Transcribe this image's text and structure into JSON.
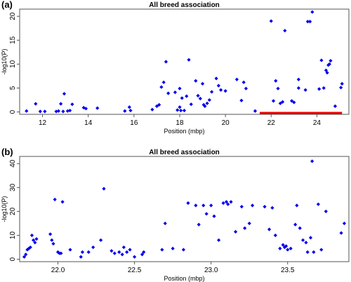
{
  "colors": {
    "points": "#0000ee",
    "highlight": "#ee0000",
    "axis": "#555555"
  },
  "chart_data": [
    {
      "panel_label": "(a)",
      "type": "scatter",
      "title": "All breed association",
      "xlabel": "Position (mbp)",
      "ylabel": "-log10(P)",
      "xlim": [
        11,
        25.4
      ],
      "ylim": [
        -0.5,
        21.5
      ],
      "xticks": [
        12,
        14,
        16,
        18,
        20,
        22,
        24
      ],
      "yticks": [
        0,
        5,
        10,
        15,
        20
      ],
      "highlight_segment": {
        "x": [
          21.5,
          25.1
        ],
        "y": -0.2
      },
      "points": [
        [
          11.3,
          0.2
        ],
        [
          11.7,
          1.7
        ],
        [
          11.9,
          0.1
        ],
        [
          12.1,
          0.1
        ],
        [
          12.6,
          0.1
        ],
        [
          12.7,
          0.2
        ],
        [
          12.9,
          0.1
        ],
        [
          12.8,
          1.7
        ],
        [
          12.95,
          3.8
        ],
        [
          13.1,
          0.2
        ],
        [
          13.2,
          0.3
        ],
        [
          13.3,
          1.6
        ],
        [
          13.8,
          0.9
        ],
        [
          13.9,
          0.7
        ],
        [
          14.4,
          0.8
        ],
        [
          15.6,
          0.2
        ],
        [
          15.8,
          1.0
        ],
        [
          15.85,
          0.3
        ],
        [
          16.8,
          0.5
        ],
        [
          17.0,
          1.2
        ],
        [
          17.1,
          1.5
        ],
        [
          17.2,
          5.2
        ],
        [
          17.3,
          6.2
        ],
        [
          17.4,
          10.5
        ],
        [
          17.5,
          3.9
        ],
        [
          17.8,
          4.1
        ],
        [
          17.9,
          0.4
        ],
        [
          18.0,
          1.0
        ],
        [
          18.05,
          0.3
        ],
        [
          18.2,
          0.3
        ],
        [
          18.0,
          4.9
        ],
        [
          18.1,
          2.9
        ],
        [
          18.3,
          3.3
        ],
        [
          18.4,
          10.9
        ],
        [
          18.5,
          1.6
        ],
        [
          18.7,
          6.5
        ],
        [
          18.8,
          3.4
        ],
        [
          18.9,
          2.8
        ],
        [
          19.0,
          5.9
        ],
        [
          19.1,
          1.2
        ],
        [
          19.05,
          1.5
        ],
        [
          19.2,
          1.8
        ],
        [
          19.3,
          2.5
        ],
        [
          19.4,
          4.2
        ],
        [
          19.6,
          7.0
        ],
        [
          19.7,
          5.5
        ],
        [
          19.8,
          4.6
        ],
        [
          20.0,
          4.4
        ],
        [
          20.5,
          6.8
        ],
        [
          20.7,
          2.4
        ],
        [
          20.8,
          6.2
        ],
        [
          20.9,
          4.9
        ],
        [
          21.3,
          0.2
        ],
        [
          22.0,
          19.0
        ],
        [
          22.1,
          2.3
        ],
        [
          22.2,
          6.5
        ],
        [
          22.3,
          4.9
        ],
        [
          22.4,
          1.8
        ],
        [
          22.5,
          2.1
        ],
        [
          22.6,
          17.0
        ],
        [
          22.9,
          2.3
        ],
        [
          23.0,
          2.0
        ],
        [
          23.2,
          5.0
        ],
        [
          23.2,
          6.8
        ],
        [
          23.5,
          4.6
        ],
        [
          23.6,
          18.9
        ],
        [
          23.7,
          18.9
        ],
        [
          23.8,
          20.9
        ],
        [
          24.1,
          4.8
        ],
        [
          24.2,
          10.8
        ],
        [
          24.3,
          5.0
        ],
        [
          24.4,
          8.7
        ],
        [
          24.45,
          8.2
        ],
        [
          24.5,
          9.8
        ],
        [
          24.55,
          10.0
        ],
        [
          24.6,
          10.7
        ],
        [
          24.8,
          1.2
        ],
        [
          25.05,
          5.1
        ],
        [
          25.1,
          5.9
        ]
      ]
    },
    {
      "panel_label": "(b)",
      "type": "scatter",
      "title": "All breed association",
      "xlabel": "Position (mbp)",
      "ylabel": "-log10(P)",
      "xlim": [
        21.75,
        23.9
      ],
      "ylim": [
        -1,
        43
      ],
      "xticks": [
        "22.0",
        "22.5",
        "23.0",
        "23.5"
      ],
      "yticks": [
        0,
        10,
        20,
        30,
        40
      ],
      "points": [
        [
          21.78,
          1.0
        ],
        [
          21.79,
          2.0
        ],
        [
          21.8,
          4.0
        ],
        [
          21.81,
          4.5
        ],
        [
          21.82,
          5.0
        ],
        [
          21.83,
          10.0
        ],
        [
          21.84,
          8.0
        ],
        [
          21.85,
          7.0
        ],
        [
          21.86,
          8.5
        ],
        [
          21.95,
          10.5
        ],
        [
          21.96,
          8.0
        ],
        [
          21.97,
          6.5
        ],
        [
          21.98,
          25.0
        ],
        [
          22.0,
          3.0
        ],
        [
          22.01,
          2.5
        ],
        [
          22.02,
          2.5
        ],
        [
          22.03,
          24.0
        ],
        [
          22.08,
          4.0
        ],
        [
          22.15,
          1.0
        ],
        [
          22.16,
          3.0
        ],
        [
          22.2,
          3.0
        ],
        [
          22.23,
          5.0
        ],
        [
          22.28,
          8.0
        ],
        [
          22.3,
          29.5
        ],
        [
          22.35,
          3.5
        ],
        [
          22.37,
          2.5
        ],
        [
          22.4,
          3.0
        ],
        [
          22.42,
          2.0
        ],
        [
          22.43,
          5.0
        ],
        [
          22.45,
          3.0
        ],
        [
          22.47,
          4.0
        ],
        [
          22.5,
          1.0
        ],
        [
          22.55,
          2.0
        ],
        [
          22.56,
          3.0
        ],
        [
          22.68,
          4.0
        ],
        [
          22.7,
          15.0
        ],
        [
          22.75,
          4.5
        ],
        [
          22.82,
          4.0
        ],
        [
          22.85,
          23.5
        ],
        [
          22.9,
          22.5
        ],
        [
          22.92,
          14.5
        ],
        [
          22.95,
          22.5
        ],
        [
          22.97,
          19.0
        ],
        [
          23.0,
          22.5
        ],
        [
          23.02,
          18.0
        ],
        [
          23.05,
          8.0
        ],
        [
          23.08,
          23.5
        ],
        [
          23.1,
          24.0
        ],
        [
          23.11,
          23.0
        ],
        [
          23.13,
          24.0
        ],
        [
          23.16,
          11.5
        ],
        [
          23.2,
          22.0
        ],
        [
          23.22,
          13.0
        ],
        [
          23.25,
          15.0
        ],
        [
          23.27,
          22.5
        ],
        [
          23.35,
          22.0
        ],
        [
          23.38,
          12.5
        ],
        [
          23.4,
          21.5
        ],
        [
          23.42,
          10.0
        ],
        [
          23.45,
          4.5
        ],
        [
          23.47,
          6.0
        ],
        [
          23.48,
          5.0
        ],
        [
          23.49,
          5.5
        ],
        [
          23.5,
          4.0
        ],
        [
          23.52,
          4.5
        ],
        [
          23.55,
          14.5
        ],
        [
          23.56,
          22.5
        ],
        [
          23.58,
          13.0
        ],
        [
          23.6,
          8.0
        ],
        [
          23.62,
          7.0
        ],
        [
          23.63,
          3.0
        ],
        [
          23.65,
          9.0
        ],
        [
          23.66,
          41.0
        ],
        [
          23.67,
          3.0
        ],
        [
          23.7,
          23.0
        ],
        [
          23.72,
          4.0
        ],
        [
          23.75,
          20.0
        ],
        [
          23.85,
          11.0
        ],
        [
          23.87,
          15.0
        ]
      ]
    }
  ]
}
